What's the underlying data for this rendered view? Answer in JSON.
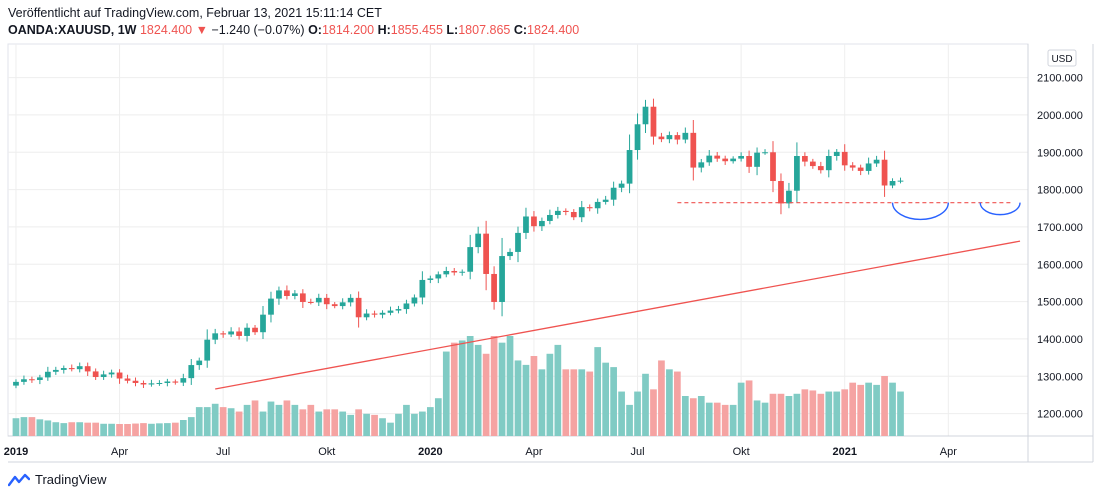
{
  "header": {
    "published": "Veröffentlicht auf TradingView.com, Februar 13, 2021 15:11:14 CET",
    "symbol": "OANDA:XAUUSD, 1W",
    "last": "1824.400",
    "change_arrow": "▼",
    "change": "−1.240 (−0.07%)",
    "o_label": "O:",
    "o_value": "1814.200",
    "h_label": "H:",
    "h_value": "1855.455",
    "l_label": "L:",
    "l_value": "1807.865",
    "c_label": "C:",
    "c_value": "1824.400"
  },
  "footer": {
    "brand": "TradingView"
  },
  "colors": {
    "up": "#26a69a",
    "down": "#ef5350",
    "up_vol": "#80cbc4",
    "down_vol": "#f5a3a2",
    "support": "#ef5350",
    "arc": "#2962ff",
    "grid": "#eeeeee"
  },
  "chart_data": {
    "type": "candlestick",
    "currency": "USD",
    "interval": "1W",
    "y_ticks": [
      "2100.000",
      "2000.000",
      "1900.000",
      "1800.000",
      "1700.000",
      "1600.000",
      "1500.000",
      "1400.000",
      "1300.000",
      "1200.000"
    ],
    "y_tick_values": [
      2100,
      2000,
      1900,
      1800,
      1700,
      1600,
      1500,
      1400,
      1300,
      1200
    ],
    "y_range": [
      1140,
      2190
    ],
    "x_labels": [
      {
        "label": "2019",
        "week": 0,
        "bold": true
      },
      {
        "label": "Apr",
        "week": 13,
        "bold": false
      },
      {
        "label": "Jul",
        "week": 26,
        "bold": false
      },
      {
        "label": "Okt",
        "week": 39,
        "bold": false
      },
      {
        "label": "2020",
        "week": 52,
        "bold": true
      },
      {
        "label": "Apr",
        "week": 65,
        "bold": false
      },
      {
        "label": "Jul",
        "week": 78,
        "bold": false
      },
      {
        "label": "Okt",
        "week": 91,
        "bold": false
      },
      {
        "label": "2021",
        "week": 104,
        "bold": true
      },
      {
        "label": "Apr",
        "week": 117,
        "bold": false
      }
    ],
    "x_week_range": [
      -1,
      127
    ],
    "closes": [
      1285,
      1292,
      1290,
      1297,
      1312,
      1317,
      1322,
      1319,
      1327,
      1313,
      1298,
      1305,
      1310,
      1294,
      1288,
      1282,
      1278,
      1281,
      1282,
      1286,
      1283,
      1295,
      1330,
      1342,
      1398,
      1415,
      1412,
      1420,
      1408,
      1430,
      1418,
      1465,
      1508,
      1530,
      1515,
      1522,
      1499,
      1498,
      1510,
      1493,
      1488,
      1498,
      1510,
      1458,
      1468,
      1465,
      1470,
      1476,
      1480,
      1495,
      1511,
      1558,
      1562,
      1573,
      1582,
      1578,
      1580,
      1646,
      1682,
      1574,
      1499,
      1622,
      1633,
      1684,
      1728,
      1702,
      1716,
      1732,
      1743,
      1740,
      1726,
      1753,
      1750,
      1767,
      1773,
      1805,
      1816,
      1906,
      1975,
      2022,
      1942,
      1935,
      1946,
      1934,
      1952,
      1859,
      1873,
      1891,
      1883,
      1876,
      1883,
      1890,
      1861,
      1899,
      1900,
      1823,
      1763,
      1797,
      1890,
      1875,
      1863,
      1852,
      1890,
      1901,
      1865,
      1859,
      1850,
      1870,
      1880,
      1811,
      1823,
      1824
    ],
    "volumes": [
      80,
      85,
      85,
      75,
      70,
      62,
      58,
      62,
      62,
      60,
      60,
      55,
      55,
      54,
      54,
      56,
      58,
      55,
      57,
      58,
      60,
      72,
      85,
      130,
      130,
      145,
      130,
      125,
      110,
      140,
      160,
      110,
      155,
      140,
      160,
      140,
      120,
      140,
      110,
      120,
      120,
      110,
      95,
      120,
      100,
      95,
      80,
      60,
      100,
      140,
      100,
      110,
      130,
      170,
      380,
      420,
      430,
      450,
      410,
      370,
      450,
      420,
      450,
      340,
      320,
      360,
      300,
      370,
      410,
      300,
      300,
      300,
      290,
      400,
      330,
      310,
      200,
      140,
      200,
      280,
      210,
      340,
      300,
      290,
      180,
      170,
      180,
      150,
      150,
      140,
      140,
      240,
      250,
      160,
      150,
      190,
      190,
      180,
      190,
      210,
      205,
      190,
      200,
      200,
      210,
      240,
      230,
      240,
      230,
      270,
      240,
      200
    ],
    "shapes": [
      {
        "kind": "trendline",
        "from": {
          "week": 25,
          "price": 1266
        },
        "to": {
          "week": 126,
          "price": 1662
        }
      },
      {
        "kind": "support",
        "price": 1765,
        "from_week": 83,
        "to_week": 125
      },
      {
        "kind": "arc",
        "from_week": 110,
        "to_week": 117,
        "price": 1765
      },
      {
        "kind": "arc",
        "from_week": 121,
        "to_week": 126,
        "price": 1765
      }
    ]
  }
}
